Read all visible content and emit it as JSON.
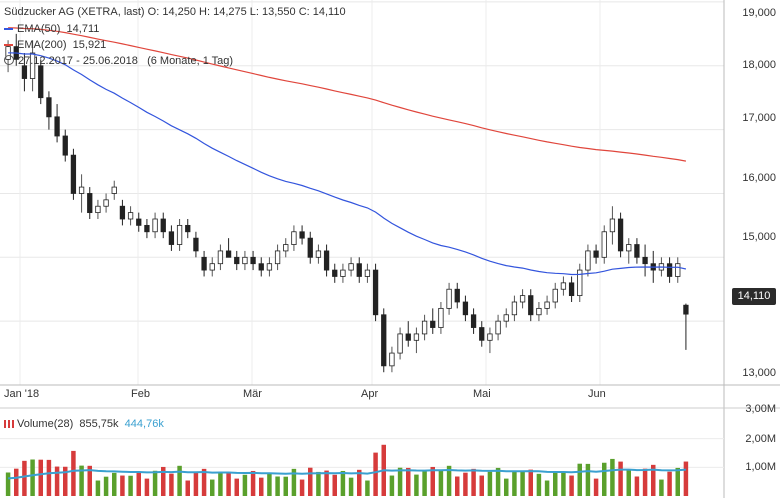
{
  "header": {
    "title_line": "Südzucker AG (XETRA, last)  O: 14,250  H: 14,275  L: 13,550  C: 14,110",
    "ema50_label": "EMA(50)",
    "ema50_value": "14,711",
    "ema200_label": "EMA(200)",
    "ema200_value": "15,921",
    "range_text": "27.12.2017 - 25.06.2018",
    "range_note": "(6 Monate, 1 Tag)",
    "icon": "clock-icon"
  },
  "price_tag": "14,110",
  "volume_legend": {
    "label": "Volume(28)",
    "value1": "855,75k",
    "value2": "444,76k"
  },
  "colors": {
    "up": "#5aa02c",
    "down": "#d63b3b",
    "ema50": "#3355dd",
    "ema200": "#e0463c",
    "avg_volume": "#3aa0d0"
  },
  "chart_data": [
    {
      "type": "candlestick",
      "title": "Südzucker AG (XETRA, last)",
      "x_range": [
        "2017-12-27",
        "2018-06-25"
      ],
      "ylim": [
        13.0,
        19.0
      ],
      "y_ticks": [
        "19,000",
        "18,000",
        "17,000",
        "16,000",
        "15,000",
        "14,000",
        "13,000"
      ],
      "x_ticks": [
        "Jan '18",
        "Feb",
        "Mär",
        "Apr",
        "Mai",
        "Jun"
      ],
      "grid": true,
      "last_close": 14.11,
      "ohlc_approx": [
        [
          18.1,
          18.4,
          17.9,
          18.3
        ],
        [
          18.3,
          18.5,
          18.0,
          18.1
        ],
        [
          18.0,
          18.2,
          17.6,
          17.8
        ],
        [
          17.8,
          18.4,
          17.6,
          18.2
        ],
        [
          18.0,
          18.1,
          17.4,
          17.5
        ],
        [
          17.5,
          17.6,
          17.0,
          17.2
        ],
        [
          17.2,
          17.4,
          16.8,
          16.9
        ],
        [
          16.9,
          17.0,
          16.5,
          16.6
        ],
        [
          16.6,
          16.7,
          15.9,
          16.0
        ],
        [
          16.0,
          16.3,
          15.7,
          16.1
        ],
        [
          16.0,
          16.1,
          15.6,
          15.7
        ],
        [
          15.7,
          15.9,
          15.6,
          15.8
        ],
        [
          15.8,
          16.0,
          15.7,
          15.9
        ],
        [
          16.0,
          16.2,
          15.9,
          16.1
        ],
        [
          15.8,
          15.9,
          15.5,
          15.6
        ],
        [
          15.6,
          15.8,
          15.5,
          15.7
        ],
        [
          15.6,
          15.7,
          15.4,
          15.5
        ],
        [
          15.5,
          15.6,
          15.3,
          15.4
        ],
        [
          15.4,
          15.7,
          15.3,
          15.6
        ],
        [
          15.6,
          15.7,
          15.3,
          15.4
        ],
        [
          15.4,
          15.5,
          15.1,
          15.2
        ],
        [
          15.2,
          15.6,
          15.1,
          15.5
        ],
        [
          15.5,
          15.6,
          15.3,
          15.4
        ],
        [
          15.3,
          15.4,
          15.0,
          15.1
        ],
        [
          15.0,
          15.1,
          14.7,
          14.8
        ],
        [
          14.8,
          15.0,
          14.7,
          14.9
        ],
        [
          14.9,
          15.2,
          14.8,
          15.1
        ],
        [
          15.1,
          15.3,
          15.0,
          15.0
        ],
        [
          15.0,
          15.1,
          14.8,
          14.9
        ],
        [
          14.9,
          15.1,
          14.8,
          15.0
        ],
        [
          15.0,
          15.1,
          14.8,
          14.9
        ],
        [
          14.9,
          15.0,
          14.7,
          14.8
        ],
        [
          14.8,
          15.0,
          14.7,
          14.9
        ],
        [
          14.9,
          15.2,
          14.8,
          15.1
        ],
        [
          15.1,
          15.3,
          15.0,
          15.2
        ],
        [
          15.2,
          15.5,
          15.1,
          15.4
        ],
        [
          15.4,
          15.5,
          15.2,
          15.3
        ],
        [
          15.3,
          15.4,
          14.9,
          15.0
        ],
        [
          15.0,
          15.2,
          14.9,
          15.1
        ],
        [
          15.1,
          15.2,
          14.7,
          14.8
        ],
        [
          14.8,
          14.9,
          14.6,
          14.7
        ],
        [
          14.7,
          14.9,
          14.6,
          14.8
        ],
        [
          14.8,
          15.0,
          14.7,
          14.9
        ],
        [
          14.9,
          15.0,
          14.6,
          14.7
        ],
        [
          14.7,
          14.9,
          14.6,
          14.8
        ],
        [
          14.8,
          14.9,
          14.0,
          14.1
        ],
        [
          14.1,
          14.2,
          13.2,
          13.3
        ],
        [
          13.3,
          13.6,
          13.2,
          13.5
        ],
        [
          13.5,
          13.9,
          13.4,
          13.8
        ],
        [
          13.8,
          14.0,
          13.6,
          13.7
        ],
        [
          13.7,
          13.9,
          13.5,
          13.8
        ],
        [
          13.8,
          14.1,
          13.7,
          14.0
        ],
        [
          14.0,
          14.2,
          13.8,
          13.9
        ],
        [
          13.9,
          14.3,
          13.8,
          14.2
        ],
        [
          14.2,
          14.6,
          14.1,
          14.5
        ],
        [
          14.5,
          14.6,
          14.2,
          14.3
        ],
        [
          14.3,
          14.4,
          14.0,
          14.1
        ],
        [
          14.1,
          14.2,
          13.8,
          13.9
        ],
        [
          13.9,
          14.0,
          13.6,
          13.7
        ],
        [
          13.7,
          13.9,
          13.5,
          13.8
        ],
        [
          13.8,
          14.1,
          13.7,
          14.0
        ],
        [
          14.0,
          14.2,
          13.9,
          14.1
        ],
        [
          14.1,
          14.4,
          14.0,
          14.3
        ],
        [
          14.3,
          14.5,
          14.2,
          14.4
        ],
        [
          14.4,
          14.5,
          14.0,
          14.1
        ],
        [
          14.1,
          14.3,
          14.0,
          14.2
        ],
        [
          14.2,
          14.4,
          14.1,
          14.3
        ],
        [
          14.3,
          14.6,
          14.2,
          14.5
        ],
        [
          14.5,
          14.7,
          14.4,
          14.6
        ],
        [
          14.6,
          14.7,
          14.3,
          14.4
        ],
        [
          14.4,
          14.9,
          14.3,
          14.8
        ],
        [
          14.8,
          15.2,
          14.7,
          15.1
        ],
        [
          15.1,
          15.2,
          14.9,
          15.0
        ],
        [
          15.0,
          15.5,
          14.9,
          15.4
        ],
        [
          15.4,
          15.8,
          15.2,
          15.6
        ],
        [
          15.6,
          15.7,
          15.0,
          15.1
        ],
        [
          15.1,
          15.3,
          14.9,
          15.2
        ],
        [
          15.2,
          15.3,
          14.9,
          15.0
        ],
        [
          15.0,
          15.2,
          14.7,
          14.9
        ],
        [
          14.9,
          15.1,
          14.6,
          14.8
        ],
        [
          14.8,
          15.0,
          14.7,
          14.9
        ],
        [
          14.9,
          15.0,
          14.6,
          14.7
        ],
        [
          14.7,
          15.0,
          14.6,
          14.9
        ],
        [
          14.25,
          14.275,
          13.55,
          14.11
        ]
      ]
    },
    {
      "type": "line",
      "series": [
        {
          "name": "EMA(50)",
          "last": 14.711
        },
        {
          "name": "EMA(200)",
          "last": 15.921
        }
      ]
    },
    {
      "type": "bar",
      "title": "Volume(28)",
      "y_ticks": [
        "3,00M",
        "2,00M",
        "1,00M"
      ],
      "ylim": [
        0,
        3.0
      ],
      "unit": "M",
      "last_values": [
        "855,75k",
        "444,76k"
      ]
    }
  ]
}
